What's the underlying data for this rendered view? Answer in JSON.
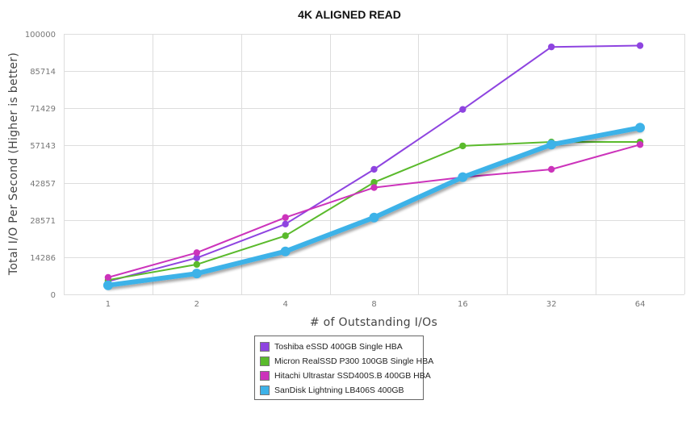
{
  "chart_data": {
    "type": "line",
    "title": "4K ALIGNED READ",
    "xlabel": "# of Outstanding I/Os",
    "ylabel": "Total I/O Per Second (Higher is better)",
    "categories": [
      "1",
      "2",
      "4",
      "8",
      "16",
      "32",
      "64"
    ],
    "yticks": [
      "0",
      "14286",
      "28571",
      "42857",
      "57143",
      "71429",
      "85714",
      "100000"
    ],
    "ylim": [
      0,
      100000
    ],
    "grid": true,
    "legend_position": "bottom-center",
    "series": [
      {
        "name": "Toshiba eSSD 400GB Single HBA",
        "color": "#8e44e0",
        "emphasis": false,
        "values": [
          5000,
          14000,
          27000,
          48000,
          71000,
          95000,
          95500
        ]
      },
      {
        "name": "Micron RealSSD P300 100GB Single HBA",
        "color": "#5aba2c",
        "emphasis": false,
        "values": [
          5500,
          11500,
          22500,
          43000,
          57000,
          58500,
          58500
        ]
      },
      {
        "name": "Hitachi Ultrastar SSD400S.B 400GB HBA",
        "color": "#cc33bb",
        "emphasis": false,
        "values": [
          6500,
          16000,
          29500,
          41000,
          45000,
          48000,
          57500
        ]
      },
      {
        "name": "SanDisk Lightning LB406S 400GB",
        "color": "#3db2e8",
        "emphasis": true,
        "values": [
          3500,
          8000,
          16500,
          29500,
          45000,
          57500,
          64000
        ]
      }
    ]
  }
}
